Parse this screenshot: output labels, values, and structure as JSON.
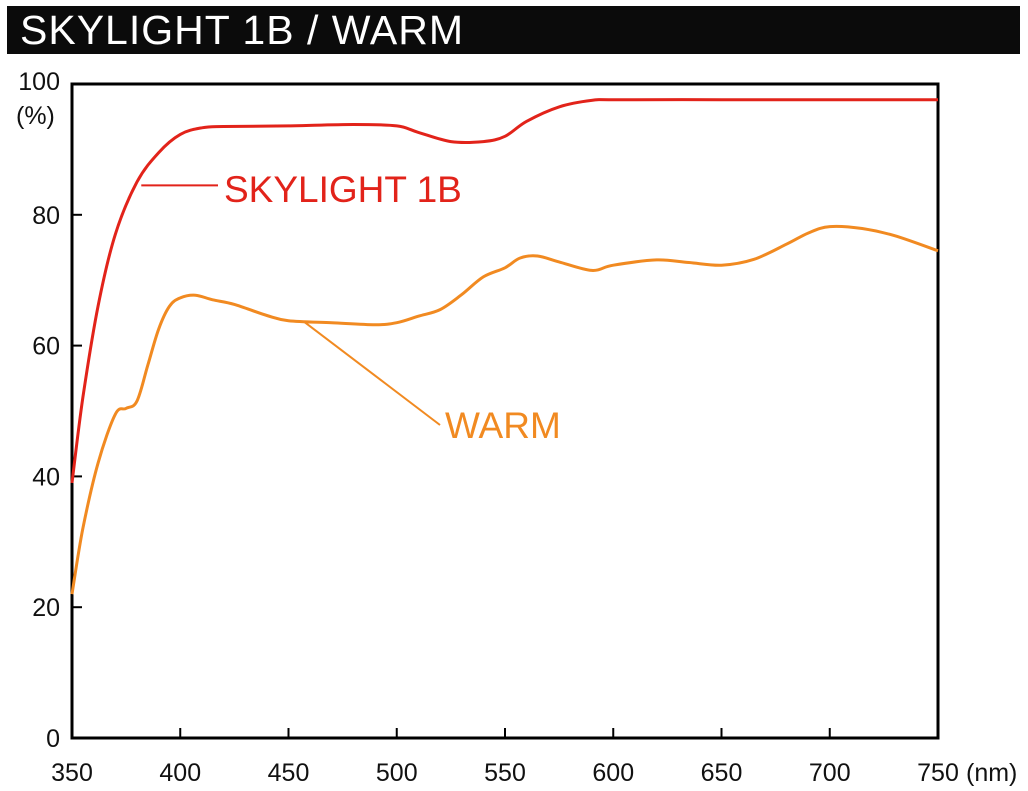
{
  "header": {
    "title": "SKYLIGHT 1B / WARM"
  },
  "chart_data": {
    "type": "line",
    "title": "SKYLIGHT 1B / WARM",
    "xlabel": "(nm)",
    "ylabel": "(%)",
    "xlim": [
      350,
      750
    ],
    "ylim": [
      0,
      100
    ],
    "x_ticks": [
      "350",
      "400",
      "450",
      "500",
      "550",
      "600",
      "650",
      "700",
      "750"
    ],
    "y_ticks": [
      "0",
      "20",
      "40",
      "60",
      "80",
      "100"
    ],
    "grid": false,
    "series": [
      {
        "name": "SKYLIGHT 1B",
        "color": "#e2231a",
        "x": [
          350,
          355,
          362,
          370,
          380,
          390,
          400,
          410,
          420,
          450,
          480,
          500,
          510,
          525,
          540,
          550,
          560,
          575,
          590,
          600,
          650,
          700,
          750
        ],
        "y": [
          39,
          52,
          66,
          77,
          85,
          89.5,
          92.3,
          93.3,
          93.5,
          93.6,
          93.8,
          93.6,
          92.6,
          91.2,
          91.2,
          92,
          94.3,
          96.5,
          97.5,
          97.6,
          97.6,
          97.6,
          97.6
        ]
      },
      {
        "name": "WARM",
        "color": "#f18a21",
        "x": [
          350,
          355,
          362,
          370,
          375,
          380,
          385,
          390,
          395,
          400,
          407,
          415,
          425,
          440,
          450,
          470,
          490,
          500,
          510,
          520,
          530,
          540,
          550,
          557,
          565,
          575,
          590,
          600,
          620,
          635,
          650,
          665,
          680,
          690,
          700,
          715,
          730,
          750
        ],
        "y": [
          22,
          32,
          42,
          49.5,
          50.4,
          51.5,
          57,
          62.5,
          66,
          67.3,
          67.7,
          67,
          66.3,
          64.6,
          63.8,
          63.5,
          63.2,
          63.5,
          64.5,
          65.5,
          67.8,
          70.5,
          71.9,
          73.4,
          73.7,
          72.8,
          71.5,
          72.3,
          73.1,
          72.7,
          72.3,
          73.2,
          75.5,
          77.2,
          78.2,
          77.9,
          76.8,
          74.5
        ]
      }
    ]
  }
}
